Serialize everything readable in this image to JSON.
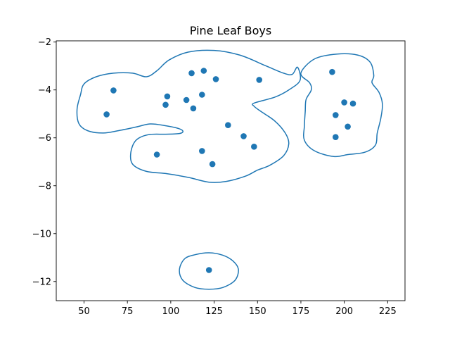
{
  "chart_data": {
    "type": "scatter",
    "title": "Pine Leaf Boys",
    "xlabel": "",
    "ylabel": "",
    "xlim": [
      34,
      235
    ],
    "ylim": [
      -12.8,
      -1.95
    ],
    "xticks": [
      50,
      75,
      100,
      125,
      150,
      175,
      200,
      225
    ],
    "yticks": [
      -2,
      -4,
      -6,
      -8,
      -10,
      -12
    ],
    "xtick_labels": [
      "50",
      "75",
      "100",
      "125",
      "150",
      "175",
      "200",
      "225"
    ],
    "ytick_labels": [
      "−2",
      "−4",
      "−6",
      "−8",
      "−10",
      "−12"
    ],
    "grid": false,
    "color": "#1f77b4",
    "points": [
      {
        "x": 67,
        "y": -4.02
      },
      {
        "x": 63,
        "y": -5.02
      },
      {
        "x": 98,
        "y": -4.27
      },
      {
        "x": 97,
        "y": -4.62
      },
      {
        "x": 112,
        "y": -3.3
      },
      {
        "x": 119,
        "y": -3.2
      },
      {
        "x": 126,
        "y": -3.55
      },
      {
        "x": 118,
        "y": -4.2
      },
      {
        "x": 109,
        "y": -4.42
      },
      {
        "x": 113,
        "y": -4.77
      },
      {
        "x": 151,
        "y": -3.58
      },
      {
        "x": 133,
        "y": -5.47
      },
      {
        "x": 142,
        "y": -5.93
      },
      {
        "x": 148,
        "y": -6.37
      },
      {
        "x": 92,
        "y": -6.7
      },
      {
        "x": 118,
        "y": -6.55
      },
      {
        "x": 124,
        "y": -7.1
      },
      {
        "x": 193,
        "y": -3.25
      },
      {
        "x": 200,
        "y": -4.52
      },
      {
        "x": 205,
        "y": -4.57
      },
      {
        "x": 195,
        "y": -5.05
      },
      {
        "x": 202,
        "y": -5.53
      },
      {
        "x": 195,
        "y": -5.97
      },
      {
        "x": 122,
        "y": -11.52
      }
    ],
    "contours": [
      [
        [
          67,
          -3.3
        ],
        [
          78,
          -3.3
        ],
        [
          86,
          -3.45
        ],
        [
          92,
          -3.2
        ],
        [
          99,
          -2.75
        ],
        [
          110,
          -2.42
        ],
        [
          125,
          -2.35
        ],
        [
          140,
          -2.55
        ],
        [
          155,
          -3.0
        ],
        [
          165,
          -3.3
        ],
        [
          170,
          -3.35
        ],
        [
          173,
          -3.05
        ],
        [
          174.5,
          -3.6
        ],
        [
          168,
          -4.0
        ],
        [
          160,
          -4.3
        ],
        [
          148,
          -4.55
        ],
        [
          148,
          -4.68
        ],
        [
          152,
          -4.9
        ],
        [
          160,
          -5.3
        ],
        [
          166,
          -5.8
        ],
        [
          168,
          -6.25
        ],
        [
          165,
          -6.75
        ],
        [
          157,
          -7.15
        ],
        [
          150,
          -7.35
        ],
        [
          143,
          -7.6
        ],
        [
          132,
          -7.82
        ],
        [
          122,
          -7.85
        ],
        [
          110,
          -7.65
        ],
        [
          98,
          -7.5
        ],
        [
          86,
          -7.4
        ],
        [
          78,
          -7.1
        ],
        [
          77,
          -6.6
        ],
        [
          80,
          -6.1
        ],
        [
          87,
          -5.87
        ],
        [
          97,
          -5.85
        ],
        [
          105,
          -5.82
        ],
        [
          107,
          -5.72
        ],
        [
          104,
          -5.6
        ],
        [
          96,
          -5.48
        ],
        [
          88,
          -5.42
        ],
        [
          80,
          -5.55
        ],
        [
          70,
          -5.7
        ],
        [
          61,
          -5.8
        ],
        [
          52,
          -5.7
        ],
        [
          47,
          -5.4
        ],
        [
          46,
          -4.8
        ],
        [
          48,
          -4.2
        ],
        [
          50,
          -3.75
        ],
        [
          57,
          -3.45
        ],
        [
          67,
          -3.3
        ]
      ],
      [
        [
          175,
          -3.3
        ],
        [
          183,
          -2.7
        ],
        [
          196,
          -2.5
        ],
        [
          208,
          -2.55
        ],
        [
          215,
          -2.85
        ],
        [
          217,
          -3.4
        ],
        [
          216,
          -3.7
        ],
        [
          220,
          -4.1
        ],
        [
          222,
          -4.6
        ],
        [
          221,
          -5.2
        ],
        [
          219,
          -5.8
        ],
        [
          218,
          -6.3
        ],
        [
          212,
          -6.6
        ],
        [
          202,
          -6.7
        ],
        [
          194,
          -6.78
        ],
        [
          183,
          -6.55
        ],
        [
          177,
          -6.1
        ],
        [
          177,
          -5.5
        ],
        [
          177.5,
          -4.9
        ],
        [
          178,
          -4.4
        ],
        [
          181,
          -4.0
        ],
        [
          180,
          -3.7
        ],
        [
          175,
          -3.3
        ]
      ],
      [
        [
          122,
          -10.8
        ],
        [
          130,
          -10.9
        ],
        [
          136,
          -11.15
        ],
        [
          139,
          -11.5
        ],
        [
          137,
          -11.95
        ],
        [
          130,
          -12.25
        ],
        [
          122,
          -12.32
        ],
        [
          114,
          -12.25
        ],
        [
          107,
          -11.95
        ],
        [
          105,
          -11.5
        ],
        [
          108,
          -11.05
        ],
        [
          114,
          -10.88
        ],
        [
          122,
          -10.8
        ]
      ]
    ]
  }
}
